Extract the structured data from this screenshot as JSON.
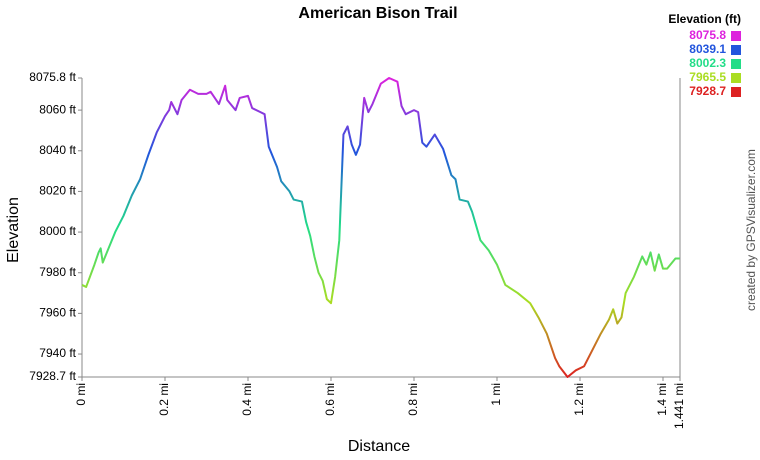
{
  "chart_data": {
    "type": "line",
    "title": "American Bison Trail",
    "x_label": "Distance",
    "y_label": "Elevation",
    "credit": "created by GPSVisualizer.com",
    "legend": {
      "title": "Elevation (ft)",
      "corner": "top-right",
      "items": [
        {
          "value": 8075.8,
          "color": "#dd22dd"
        },
        {
          "value": 8039.1,
          "color": "#2255dd"
        },
        {
          "value": 8002.3,
          "color": "#22dd88"
        },
        {
          "value": 7965.5,
          "color": "#aadd22"
        },
        {
          "value": 7928.7,
          "color": "#dd2222"
        }
      ]
    },
    "x": [
      0,
      0.01,
      0.03,
      0.04,
      0.045,
      0.05,
      0.06,
      0.08,
      0.1,
      0.12,
      0.14,
      0.16,
      0.18,
      0.2,
      0.21,
      0.215,
      0.23,
      0.24,
      0.26,
      0.28,
      0.3,
      0.31,
      0.33,
      0.345,
      0.35,
      0.37,
      0.38,
      0.4,
      0.41,
      0.43,
      0.44,
      0.45,
      0.47,
      0.48,
      0.5,
      0.51,
      0.53,
      0.54,
      0.55,
      0.56,
      0.57,
      0.58,
      0.59,
      0.6,
      0.61,
      0.62,
      0.63,
      0.64,
      0.65,
      0.66,
      0.67,
      0.68,
      0.69,
      0.7,
      0.72,
      0.74,
      0.76,
      0.77,
      0.78,
      0.8,
      0.81,
      0.82,
      0.83,
      0.85,
      0.87,
      0.89,
      0.9,
      0.91,
      0.93,
      0.94,
      0.96,
      0.98,
      1.0,
      1.02,
      1.05,
      1.08,
      1.1,
      1.12,
      1.14,
      1.15,
      1.17,
      1.19,
      1.21,
      1.23,
      1.25,
      1.27,
      1.28,
      1.29,
      1.3,
      1.31,
      1.33,
      1.35,
      1.36,
      1.37,
      1.38,
      1.39,
      1.4,
      1.41,
      1.43,
      1.441
    ],
    "values": [
      7974,
      7973,
      7984,
      7990,
      7992,
      7985,
      7990,
      8000,
      8008,
      8018,
      8026,
      8038,
      8049,
      8057,
      8060,
      8064,
      8058,
      8065,
      8070,
      8068,
      8068,
      8069,
      8063,
      8072,
      8065,
      8060,
      8066,
      8067,
      8061,
      8059,
      8058,
      8042,
      8032,
      8025,
      8020,
      8016,
      8015,
      8005,
      7998,
      7988,
      7980,
      7976,
      7967,
      7965,
      7978,
      7996,
      8048,
      8052,
      8043,
      8038,
      8043,
      8066,
      8059,
      8063,
      8073,
      8075.8,
      8074,
      8062,
      8058,
      8060,
      8059,
      8044,
      8042,
      8048,
      8041,
      8028,
      8026,
      8016,
      8015,
      8010,
      7996,
      7991,
      7984,
      7974,
      7970,
      7965,
      7958,
      7950,
      7938,
      7934,
      7928.7,
      7932,
      7934,
      7942,
      7950,
      7957,
      7962,
      7955,
      7958,
      7970,
      7978,
      7988,
      7984,
      7990,
      7981,
      7989,
      7982,
      7982,
      7987,
      7987
    ],
    "xlim": [
      0,
      1.441
    ],
    "ylim": [
      7928.7,
      8075.8
    ],
    "xticks": [
      {
        "value": 0,
        "label": "0 mi"
      },
      {
        "value": 0.2,
        "label": "0.2 mi"
      },
      {
        "value": 0.4,
        "label": "0.4 mi"
      },
      {
        "value": 0.6,
        "label": "0.6 mi"
      },
      {
        "value": 0.8,
        "label": "0.8 mi"
      },
      {
        "value": 1,
        "label": "1 mi"
      },
      {
        "value": 1.2,
        "label": "1.2 mi"
      },
      {
        "value": 1.4,
        "label": "1.4 mi"
      },
      {
        "value": 1.441,
        "label": "1.441 mi"
      }
    ],
    "yticks": [
      {
        "value": 7928.7,
        "label": "7928.7 ft"
      },
      {
        "value": 7940,
        "label": "7940 ft"
      },
      {
        "value": 7960,
        "label": "7960 ft"
      },
      {
        "value": 7980,
        "label": "7980 ft"
      },
      {
        "value": 8000,
        "label": "8000 ft"
      },
      {
        "value": 8020,
        "label": "8020 ft"
      },
      {
        "value": 8040,
        "label": "8040 ft"
      },
      {
        "value": 8060,
        "label": "8060 ft"
      },
      {
        "value": 8075.8,
        "label": "8075.8 ft"
      }
    ]
  }
}
